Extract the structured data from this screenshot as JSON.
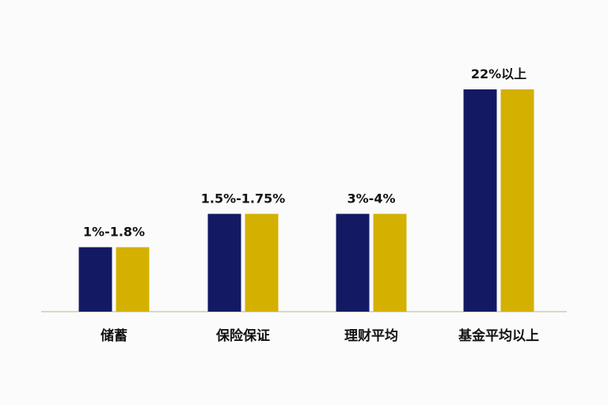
{
  "chart_data": {
    "type": "bar",
    "categories": [
      "储蓄",
      "保险保证",
      "理财平均",
      "基金平均以上"
    ],
    "series": [
      {
        "values": [
          1.8,
          1.75,
          4,
          22
        ],
        "color": "#131a63"
      },
      {
        "values": [
          1.8,
          1.75,
          4,
          22
        ],
        "color": "#d4b000"
      }
    ],
    "data_labels": [
      "1%-1.8%",
      "1.5%-1.75%",
      "3%-4%",
      "22%以上"
    ],
    "axis_line_color": "#c9c49a",
    "xlabel": "",
    "ylabel": "",
    "grid": false,
    "legend": "none"
  }
}
